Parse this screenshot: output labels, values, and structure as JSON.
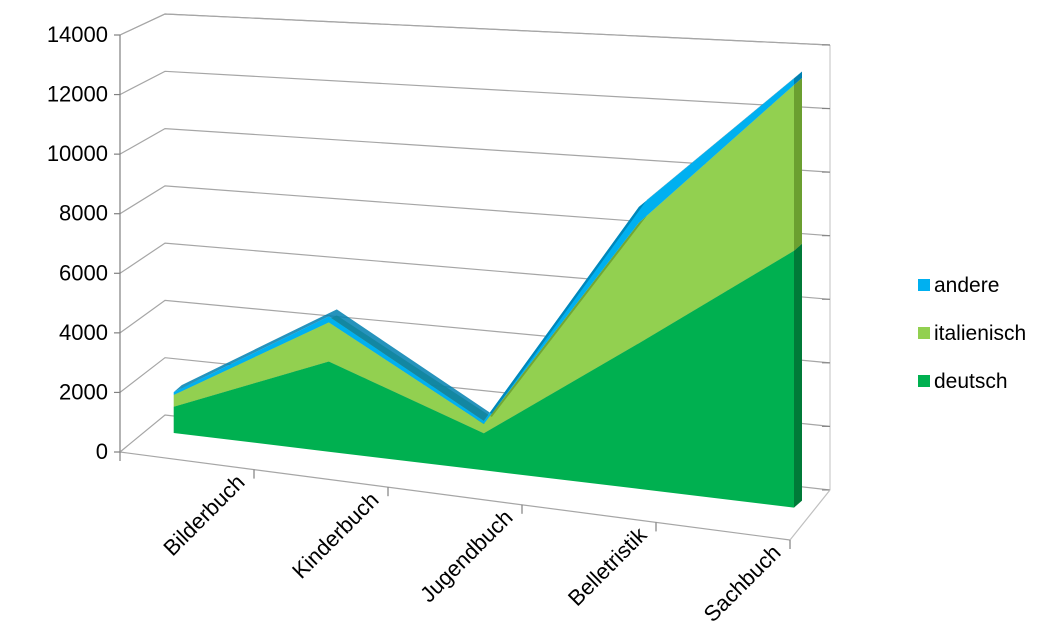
{
  "chart_data": {
    "type": "area",
    "stacked": true,
    "three_d": true,
    "categories": [
      "Bilderbuch",
      "Kinderbuch",
      "Jugendbuch",
      "Belletristik",
      "Sachbuch"
    ],
    "series": [
      {
        "name": "deutsch",
        "values": [
          900,
          3000,
          1200,
          4600,
          7900
        ],
        "color": "#00B050"
      },
      {
        "name": "italienisch",
        "values": [
          400,
          1300,
          300,
          3800,
          5100
        ],
        "color": "#92D050"
      },
      {
        "name": "andere",
        "values": [
          100,
          200,
          100,
          500,
          200
        ],
        "color": "#00B0F0"
      }
    ],
    "yticks": [
      "0",
      "2000",
      "4000",
      "6000",
      "8000",
      "10000",
      "12000",
      "14000"
    ],
    "ylim": [
      0,
      14000
    ],
    "grid": true,
    "legend": {
      "position": "right",
      "order": [
        "andere",
        "italienisch",
        "deutsch"
      ]
    }
  }
}
